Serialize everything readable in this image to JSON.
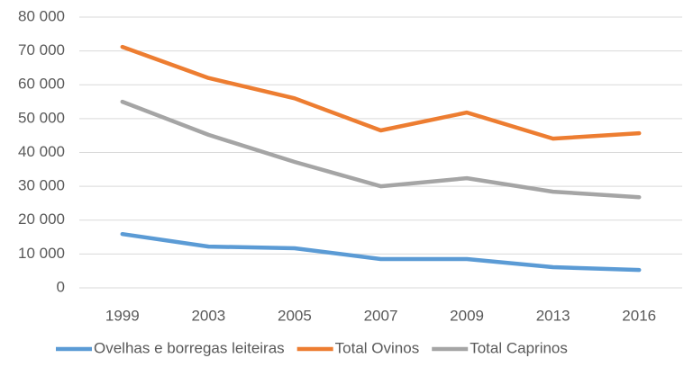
{
  "chart_data": {
    "type": "line",
    "categories": [
      "1999",
      "2003",
      "2005",
      "2007",
      "2009",
      "2013",
      "2016"
    ],
    "series": [
      {
        "name": "Ovelhas e borregas leiteiras",
        "color": "#5b9bd5",
        "values": [
          15900,
          12200,
          11700,
          8500,
          8500,
          6100,
          5300
        ]
      },
      {
        "name": "Total Ovinos",
        "color": "#ed7d31",
        "values": [
          71200,
          62000,
          56000,
          46500,
          51800,
          44100,
          45700
        ]
      },
      {
        "name": "Total Caprinos",
        "color": "#a5a5a5",
        "values": [
          55000,
          45200,
          37200,
          30000,
          32400,
          28400,
          26800
        ]
      }
    ],
    "ylim": [
      0,
      80000
    ],
    "yticks": [
      0,
      {
        "value": 10000,
        "label": "10 000"
      },
      {
        "value": 20000,
        "label": "20 000"
      },
      {
        "value": 30000,
        "label": "30 000"
      },
      {
        "value": 40000,
        "label": "40 000"
      },
      {
        "value": 50000,
        "label": "50 000"
      },
      {
        "value": 60000,
        "label": "60 000"
      },
      {
        "value": 70000,
        "label": "70 000"
      },
      {
        "value": 80000,
        "label": "80 000"
      }
    ],
    "grid": true,
    "legend": "bottom"
  }
}
